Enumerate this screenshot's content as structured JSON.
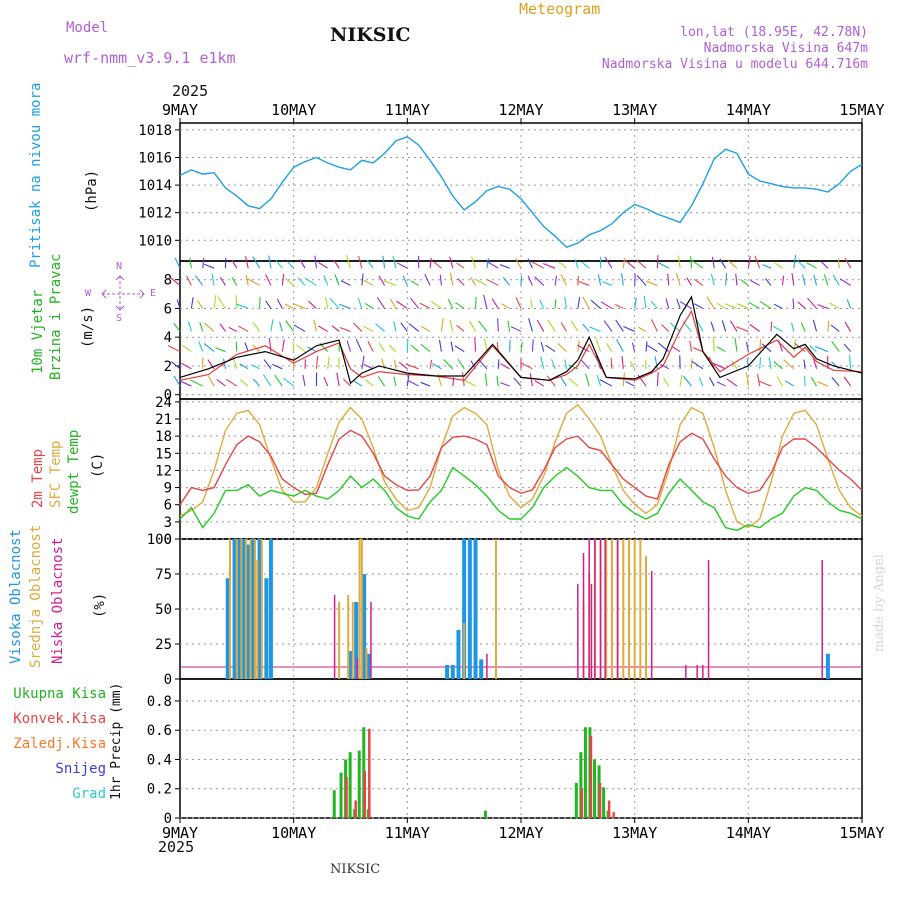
{
  "header": {
    "model_label": "Model",
    "model_name": "wrf-nmm_v3.9.1 e1km",
    "station": "NIKSIC",
    "meteogram_label": "Meteogram",
    "lonlat": "lon,lat (18.95E, 42.78N)",
    "altitude": "Nadmorska Visina 647m",
    "model_altitude": "Nadmorska Visina u modelu 644.716m"
  },
  "footer": {
    "station": "NIKSIC",
    "credit": "made by Angel"
  },
  "time_axis": {
    "year": "2025",
    "ticks": [
      "9MAY",
      "10MAY",
      "11MAY",
      "12MAY",
      "13MAY",
      "14MAY",
      "15MAY"
    ]
  },
  "panel_labels": {
    "pressure": [
      "Pritisak na nivou mora",
      "(hPa)"
    ],
    "wind": [
      "10m Vjetar",
      "Brzina i Pravac",
      "(m/s)"
    ],
    "wind_compass": {
      "n": "N",
      "s": "S",
      "w": "W",
      "e": "E"
    },
    "temp": [
      "2m Temp",
      "SFC Temp",
      "dewpt Temp",
      "(C)"
    ],
    "cloud": [
      "Visoka Oblacnost",
      "Srednja Oblacnost",
      "Niska Oblacnost",
      "(%)"
    ],
    "precip_unit": "1hr Precip (mm)",
    "precip_legend": [
      "Ukupna Kisa",
      "Konvek.Kisa",
      "Zaledj.Kisa",
      "Snijeg",
      "Grad"
    ]
  },
  "colors": {
    "pressure": "#1ea0e6",
    "wind_speed": "#000000",
    "wind_gust": "#e03c3c",
    "t2m": "#e64646",
    "tsfc": "#e0aa3c",
    "td": "#22cc22",
    "cloud_high": "#1e96e6",
    "cloud_mid": "#e0aa3c",
    "cloud_low": "#d21e8c",
    "precip_total": "#22b422",
    "precip_conv": "#e64646",
    "legend_total": "#22b422",
    "legend_conv": "#e64646",
    "legend_frz": "#ff7828",
    "legend_snow": "#3c3cdc",
    "legend_hail": "#32c8c8"
  },
  "chart_data": [
    {
      "type": "line",
      "panel": "pressure",
      "x_unit": "days since 9 May 2025 00 UTC",
      "xlim": [
        0,
        6
      ],
      "ylim": [
        1008.5,
        1018.5
      ],
      "yticks": [
        1010,
        1012,
        1014,
        1016,
        1018
      ],
      "series": [
        {
          "x": [
            0,
            0.1,
            0.2,
            0.3,
            0.4,
            0.5,
            0.6,
            0.7,
            0.8,
            0.9,
            1.0,
            1.1,
            1.2,
            1.3,
            1.4,
            1.5,
            1.6,
            1.7,
            1.8,
            1.9,
            2.0,
            2.1,
            2.2,
            2.3,
            2.4,
            2.5,
            2.6,
            2.7,
            2.8,
            2.9,
            3.0,
            3.1,
            3.2,
            3.3,
            3.4,
            3.5,
            3.6,
            3.7,
            3.8,
            3.9,
            4.0,
            4.1,
            4.2,
            4.3,
            4.4,
            4.5,
            4.6,
            4.7,
            4.8,
            4.9,
            5.0,
            5.1,
            5.2,
            5.3,
            5.4,
            5.5,
            5.6,
            5.7,
            5.8,
            5.9,
            6.0
          ],
          "values": [
            1014.7,
            1015.1,
            1014.8,
            1014.9,
            1013.8,
            1013.2,
            1012.5,
            1012.3,
            1013.0,
            1014.2,
            1015.3,
            1015.7,
            1016.0,
            1015.6,
            1015.3,
            1015.1,
            1015.8,
            1015.6,
            1016.3,
            1017.2,
            1017.5,
            1016.9,
            1015.8,
            1014.6,
            1013.2,
            1012.2,
            1012.8,
            1013.6,
            1013.9,
            1013.7,
            1013.0,
            1012.0,
            1011.0,
            1010.3,
            1009.5,
            1009.8,
            1010.4,
            1010.7,
            1011.2,
            1012.0,
            1012.6,
            1012.3,
            1011.9,
            1011.6,
            1011.3,
            1012.5,
            1014.1,
            1015.9,
            1016.6,
            1016.3,
            1014.8,
            1014.3,
            1014.1,
            1013.9,
            1013.8,
            1013.8,
            1013.7,
            1013.5,
            1014.1,
            1015.0,
            1015.5
          ]
        }
      ]
    },
    {
      "type": "line",
      "panel": "wind",
      "x_unit": "days since 9 May 2025 00 UTC",
      "xlim": [
        0,
        6
      ],
      "ylim": [
        -0.3,
        9.3
      ],
      "yticks": [
        0,
        2,
        4,
        6,
        8
      ],
      "series": [
        {
          "name": "speed",
          "x": [
            0,
            0.25,
            0.5,
            0.75,
            1.0,
            1.2,
            1.4,
            1.5,
            1.6,
            1.75,
            2.0,
            2.25,
            2.5,
            2.75,
            3.0,
            3.25,
            3.4,
            3.5,
            3.6,
            3.75,
            4.0,
            4.15,
            4.25,
            4.4,
            4.5,
            4.6,
            4.75,
            5.0,
            5.25,
            5.4,
            5.5,
            5.6,
            5.75,
            6.0
          ],
          "values": [
            1.2,
            1.8,
            2.6,
            3.0,
            2.4,
            3.4,
            3.8,
            0.8,
            1.5,
            2.0,
            1.5,
            1.3,
            1.3,
            3.5,
            1.2,
            1.0,
            1.6,
            2.4,
            4.0,
            1.2,
            1.1,
            1.6,
            2.5,
            5.5,
            6.8,
            3.0,
            1.2,
            2.0,
            4.2,
            3.2,
            3.5,
            2.5,
            2.0,
            1.5
          ]
        },
        {
          "name": "gust",
          "x": [
            0,
            0.25,
            0.5,
            0.75,
            1.0,
            1.2,
            1.4,
            1.5,
            1.6,
            1.75,
            2.0,
            2.25,
            2.5,
            2.75,
            3.0,
            3.25,
            3.4,
            3.5,
            3.6,
            3.75,
            4.0,
            4.15,
            4.25,
            4.4,
            4.5,
            4.6,
            4.75,
            5.0,
            5.25,
            5.4,
            5.5,
            5.6,
            5.75,
            6.0
          ],
          "values": [
            1.0,
            1.4,
            2.8,
            3.4,
            2.2,
            3.0,
            3.6,
            1.8,
            1.2,
            1.6,
            1.4,
            1.3,
            1.0,
            3.4,
            1.2,
            1.0,
            1.4,
            2.0,
            3.5,
            1.2,
            1.0,
            1.5,
            2.0,
            4.5,
            5.8,
            3.0,
            1.6,
            2.8,
            3.8,
            2.6,
            3.3,
            2.3,
            1.7,
            1.6
          ]
        }
      ]
    },
    {
      "type": "line",
      "panel": "temperature",
      "x_unit": "days since 9 May 2025 00 UTC",
      "xlim": [
        0,
        6
      ],
      "ylim": [
        0,
        24.5
      ],
      "yticks": [
        0,
        3,
        6,
        9,
        12,
        15,
        18,
        21,
        24
      ],
      "series": [
        {
          "name": "2m Temp",
          "x": [
            0,
            0.1,
            0.2,
            0.3,
            0.4,
            0.5,
            0.6,
            0.7,
            0.8,
            0.9,
            1.0,
            1.1,
            1.2,
            1.3,
            1.4,
            1.5,
            1.6,
            1.7,
            1.8,
            1.9,
            2.0,
            2.1,
            2.2,
            2.3,
            2.4,
            2.5,
            2.6,
            2.7,
            2.8,
            2.9,
            3.0,
            3.1,
            3.2,
            3.3,
            3.4,
            3.5,
            3.6,
            3.7,
            3.8,
            3.9,
            4.0,
            4.1,
            4.2,
            4.3,
            4.4,
            4.5,
            4.6,
            4.7,
            4.8,
            4.9,
            5.0,
            5.1,
            5.2,
            5.3,
            5.4,
            5.5,
            5.6,
            5.7,
            5.8,
            5.9,
            6.0
          ],
          "values": [
            6.0,
            9.0,
            8.5,
            9.0,
            13.0,
            16.5,
            18.0,
            17.0,
            14.5,
            10.5,
            9.0,
            7.8,
            8.0,
            13.0,
            17.5,
            19.0,
            18.0,
            15.0,
            11.0,
            9.5,
            8.5,
            8.6,
            11.0,
            16.0,
            17.8,
            18.0,
            17.5,
            16.5,
            11.0,
            9.0,
            8.0,
            8.6,
            12.0,
            16.0,
            17.5,
            18.0,
            16.0,
            15.5,
            13.0,
            10.5,
            9.0,
            7.5,
            7.0,
            13.0,
            17.0,
            18.5,
            17.5,
            14.0,
            11.0,
            9.0,
            8.0,
            8.5,
            11.5,
            16.0,
            17.5,
            17.5,
            16.0,
            14.0,
            12.0,
            10.5,
            8.5
          ]
        },
        {
          "name": "SFC Temp",
          "x": [
            0,
            0.1,
            0.2,
            0.3,
            0.4,
            0.5,
            0.6,
            0.7,
            0.8,
            0.9,
            1.0,
            1.1,
            1.2,
            1.3,
            1.4,
            1.5,
            1.6,
            1.7,
            1.8,
            1.9,
            2.0,
            2.1,
            2.2,
            2.3,
            2.4,
            2.5,
            2.6,
            2.7,
            2.8,
            2.9,
            3.0,
            3.1,
            3.2,
            3.3,
            3.4,
            3.5,
            3.6,
            3.7,
            3.8,
            3.9,
            4.0,
            4.1,
            4.2,
            4.3,
            4.4,
            4.5,
            4.6,
            4.7,
            4.8,
            4.9,
            5.0,
            5.1,
            5.2,
            5.3,
            5.4,
            5.5,
            5.6,
            5.7,
            5.8,
            5.9,
            6.0
          ],
          "values": [
            4.0,
            5.0,
            6.5,
            12.0,
            19.0,
            22.0,
            22.5,
            20.0,
            14.0,
            8.5,
            6.5,
            6.5,
            9.0,
            15.0,
            20.5,
            23.0,
            21.0,
            16.0,
            10.0,
            7.0,
            5.0,
            5.5,
            9.0,
            16.0,
            21.5,
            23.0,
            22.0,
            20.0,
            12.0,
            7.5,
            5.5,
            7.0,
            11.0,
            17.0,
            22.0,
            23.5,
            21.0,
            18.0,
            13.0,
            8.5,
            6.0,
            4.5,
            6.0,
            12.0,
            20.0,
            23.0,
            22.0,
            16.0,
            8.5,
            3.0,
            2.0,
            3.5,
            10.0,
            18.0,
            22.0,
            22.5,
            20.0,
            14.0,
            8.5,
            5.5,
            4.0
          ]
        },
        {
          "name": "dewpt Temp",
          "x": [
            0,
            0.1,
            0.2,
            0.3,
            0.4,
            0.5,
            0.6,
            0.7,
            0.8,
            0.9,
            1.0,
            1.1,
            1.2,
            1.3,
            1.4,
            1.5,
            1.6,
            1.7,
            1.8,
            1.9,
            2.0,
            2.1,
            2.2,
            2.3,
            2.4,
            2.5,
            2.6,
            2.7,
            2.8,
            2.9,
            3.0,
            3.1,
            3.2,
            3.3,
            3.4,
            3.5,
            3.6,
            3.7,
            3.8,
            3.9,
            4.0,
            4.1,
            4.2,
            4.3,
            4.4,
            4.5,
            4.6,
            4.7,
            4.8,
            4.9,
            5.0,
            5.1,
            5.2,
            5.3,
            5.4,
            5.5,
            5.6,
            5.7,
            5.8,
            5.9,
            6.0
          ],
          "values": [
            3.5,
            5.5,
            2.0,
            4.5,
            8.5,
            8.5,
            9.5,
            7.5,
            8.5,
            8.0,
            7.5,
            8.5,
            7.5,
            7.0,
            8.5,
            11.0,
            9.0,
            10.5,
            8.5,
            5.5,
            4.0,
            3.5,
            6.5,
            8.5,
            12.5,
            11.0,
            9.5,
            7.5,
            5.0,
            3.5,
            3.5,
            5.5,
            9.0,
            11.0,
            12.5,
            11.0,
            9.0,
            8.5,
            8.5,
            6.0,
            4.5,
            3.5,
            4.5,
            8.0,
            10.5,
            8.5,
            6.5,
            5.5,
            2.0,
            1.5,
            2.5,
            2.0,
            3.5,
            4.5,
            7.5,
            9.0,
            8.5,
            6.5,
            5.0,
            4.5,
            3.5
          ]
        }
      ]
    },
    {
      "type": "bar",
      "panel": "cloud",
      "x_unit": "days since 9 May 2025 00 UTC",
      "xlim": [
        0,
        6
      ],
      "ylim": [
        0,
        100
      ],
      "yticks": [
        0,
        25,
        50,
        75,
        100
      ],
      "series": [
        {
          "name": "Visoka Oblacnost",
          "x": [
            0.42,
            0.48,
            0.52,
            0.56,
            0.6,
            0.64,
            0.7,
            0.76,
            0.8,
            1.45,
            1.5,
            1.55,
            1.62,
            1.66,
            2.35,
            2.4,
            2.45,
            2.5,
            2.55,
            2.6,
            2.65,
            5.7
          ],
          "values": [
            72,
            100,
            100,
            100,
            96,
            100,
            100,
            72,
            100,
            5,
            20,
            55,
            75,
            18,
            10,
            10,
            35,
            100,
            100,
            100,
            14,
            18
          ]
        },
        {
          "name": "Srednja Oblacnost",
          "x": [
            0.44,
            0.5,
            0.54,
            0.58,
            0.62,
            0.66,
            0.68,
            0.72,
            1.4,
            1.48,
            1.52,
            1.58,
            1.6,
            1.64,
            2.5,
            2.78,
            3.55,
            3.6,
            3.65,
            3.7,
            3.75,
            3.8,
            3.85,
            3.9,
            3.95,
            4.0,
            4.05,
            4.1
          ],
          "values": [
            100,
            100,
            100,
            100,
            100,
            100,
            85,
            100,
            55,
            60,
            55,
            100,
            100,
            22,
            40,
            100,
            55,
            75,
            100,
            100,
            100,
            100,
            100,
            100,
            100,
            100,
            100,
            88
          ]
        },
        {
          "name": "Niska Oblacnost",
          "x": [
            1.36,
            1.46,
            1.56,
            1.68,
            2.7,
            3.45,
            3.5,
            3.55,
            3.6,
            3.62,
            3.65,
            3.7,
            3.74,
            3.85,
            4.15,
            4.45,
            4.55,
            4.6,
            4.65,
            5.65
          ],
          "values": [
            60,
            5,
            15,
            55,
            18,
            2,
            68,
            90,
            100,
            68,
            100,
            100,
            100,
            100,
            77,
            10,
            10,
            10,
            85,
            85
          ]
        }
      ]
    },
    {
      "type": "bar",
      "panel": "precip",
      "x_unit": "days since 9 May 2025 00 UTC",
      "xlim": [
        0,
        6
      ],
      "ylim": [
        0,
        0.95
      ],
      "yticks": [
        0,
        0.2,
        0.4,
        0.6,
        0.8
      ],
      "series": [
        {
          "name": "Ukupna Kisa",
          "x": [
            1.37,
            1.43,
            1.47,
            1.51,
            1.55,
            1.59,
            1.63,
            1.67,
            2.7,
            3.5,
            3.54,
            3.58,
            3.62,
            3.66,
            3.7,
            3.74,
            3.78
          ],
          "values": [
            0.19,
            0.31,
            0.4,
            0.45,
            0.06,
            0.46,
            0.62,
            0.06,
            0.05,
            0.24,
            0.45,
            0.62,
            0.62,
            0.4,
            0.36,
            0.21,
            0.05
          ]
        },
        {
          "name": "Konvek.Kisa",
          "x": [
            1.45,
            1.53,
            1.61,
            1.65,
            3.52,
            3.6,
            3.68,
            3.76,
            3.8
          ],
          "values": [
            0.28,
            0.12,
            0.32,
            0.61,
            0.2,
            0.56,
            0.24,
            0.12,
            0.04
          ]
        }
      ]
    }
  ]
}
